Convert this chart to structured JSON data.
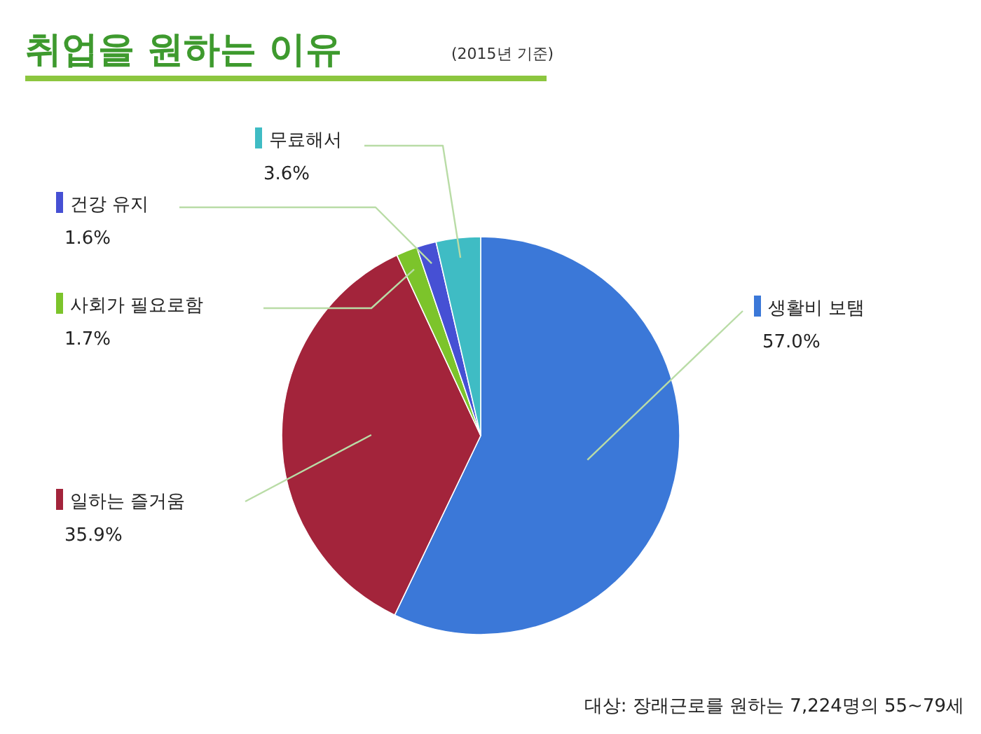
{
  "chart_data": {
    "type": "pie",
    "title": "취업을 원하는 이유",
    "subtitle": "(2015년 기준)",
    "categories": [
      "생활비 보탬",
      "일하는 즐거움",
      "사회가 필요로함",
      "건강 유지",
      "무료해서"
    ],
    "values": [
      57.0,
      35.9,
      1.7,
      1.6,
      3.6
    ],
    "value_labels": [
      "57.0%",
      "35.9%",
      "1.7%",
      "1.6%",
      "3.6%"
    ],
    "colors": [
      "#3b78d8",
      "#a3243b",
      "#7cc42b",
      "#4650d4",
      "#3fbcc4"
    ],
    "legend": "left",
    "annotations": [
      "대상: 장래근로를 원하는 7,224명의 55~79세"
    ]
  }
}
